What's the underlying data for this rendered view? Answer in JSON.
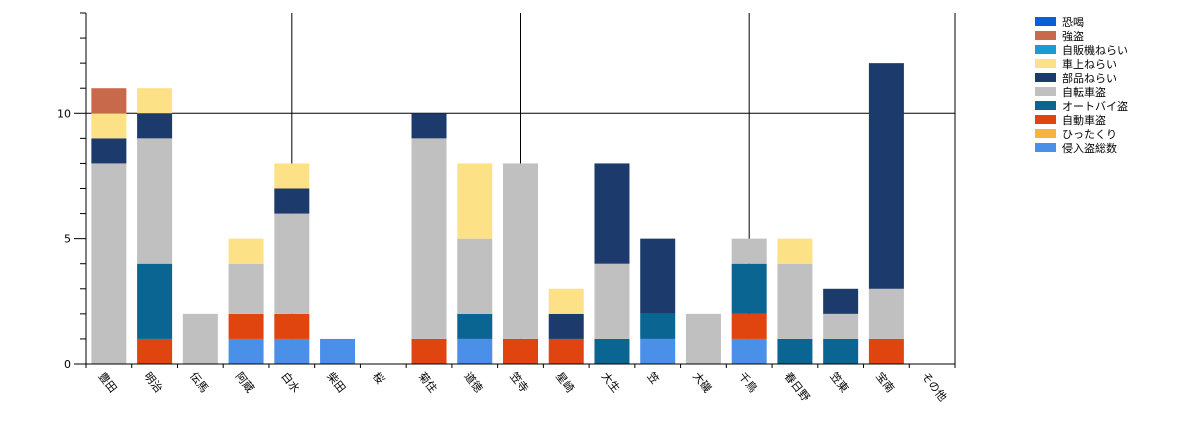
{
  "chart_data": {
    "type": "bar",
    "stacked": true,
    "categories": [
      "豊田",
      "明治",
      "伝馬",
      "阿蔵",
      "白水",
      "柴田",
      "桜",
      "菊住",
      "道徳",
      "笠寺",
      "星崎",
      "大生",
      "笠",
      "大磯",
      "千鳥",
      "春日野",
      "笠東",
      "宝南",
      "その他"
    ],
    "ylim": [
      0,
      14
    ],
    "yticks": [
      0,
      5,
      10
    ],
    "grid": "major gridlines at y=10 and at x between 白水|笠寺|千鳥",
    "legend_position": "top-right",
    "series": [
      {
        "name": "侵入盗総数",
        "color": "#4a90e8",
        "values": [
          0,
          0,
          0,
          1,
          1,
          1,
          0,
          0,
          1,
          0,
          0,
          0,
          1,
          0,
          1,
          0,
          0,
          0,
          0
        ]
      },
      {
        "name": "ひったくり",
        "color": "#f5b43c",
        "values": [
          0,
          0,
          0,
          0,
          0,
          0,
          0,
          0,
          0,
          0,
          0,
          0,
          0,
          0,
          0,
          0,
          0,
          0,
          0
        ]
      },
      {
        "name": "自動車盗",
        "color": "#e04510",
        "values": [
          0,
          1,
          0,
          1,
          1,
          0,
          0,
          1,
          0,
          1,
          1,
          0,
          0,
          0,
          1,
          0,
          0,
          1,
          0
        ]
      },
      {
        "name": "オートバイ盗",
        "color": "#0b6592",
        "values": [
          0,
          3,
          0,
          0,
          0,
          0,
          0,
          0,
          1,
          0,
          0,
          1,
          1,
          0,
          2,
          1,
          1,
          0,
          0
        ]
      },
      {
        "name": "自転車盗",
        "color": "#c0c0c0",
        "values": [
          8,
          5,
          2,
          2,
          4,
          0,
          0,
          8,
          3,
          7,
          0,
          3,
          0,
          2,
          1,
          3,
          1,
          2,
          0
        ]
      },
      {
        "name": "部品ねらい",
        "color": "#1c3a6b",
        "values": [
          1,
          1,
          0,
          0,
          1,
          0,
          0,
          1,
          0,
          0,
          1,
          4,
          3,
          0,
          0,
          0,
          1,
          9,
          0
        ]
      },
      {
        "name": "車上ねらい",
        "color": "#fde187",
        "values": [
          1,
          1,
          0,
          1,
          1,
          0,
          0,
          0,
          3,
          0,
          1,
          0,
          0,
          0,
          0,
          1,
          0,
          0,
          0
        ]
      },
      {
        "name": "自販機ねらい",
        "color": "#1b9ad6",
        "values": [
          0,
          0,
          0,
          0,
          0,
          0,
          0,
          0,
          0,
          0,
          0,
          0,
          0,
          0,
          0,
          0,
          0,
          0,
          0
        ]
      },
      {
        "name": "強盗",
        "color": "#c8694b",
        "values": [
          1,
          0,
          0,
          0,
          0,
          0,
          0,
          0,
          0,
          0,
          0,
          0,
          0,
          0,
          0,
          0,
          0,
          0,
          0
        ]
      },
      {
        "name": "恐喝",
        "color": "#0b5ed7",
        "values": [
          0,
          0,
          0,
          0,
          0,
          0,
          0,
          0,
          0,
          0,
          0,
          0,
          0,
          0,
          0,
          0,
          0,
          0,
          0
        ]
      }
    ]
  }
}
